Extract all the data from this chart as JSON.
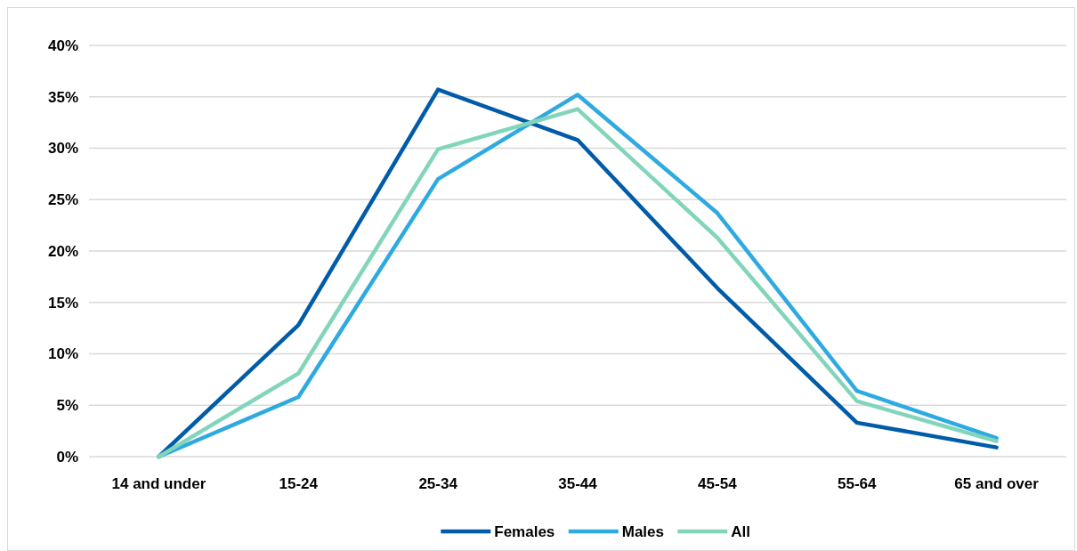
{
  "chart_data": {
    "type": "line",
    "categories": [
      "14 and under",
      "15-24",
      "25-34",
      "35-44",
      "45-54",
      "55-64",
      "65 and over"
    ],
    "series": [
      {
        "name": "Females",
        "color": "#005ba8",
        "values": [
          0,
          12.8,
          35.7,
          30.8,
          16.4,
          3.3,
          0.9
        ]
      },
      {
        "name": "Males",
        "color": "#2eaae1",
        "values": [
          0,
          5.8,
          27.0,
          35.2,
          23.7,
          6.4,
          1.8
        ]
      },
      {
        "name": "All",
        "color": "#82d5bb",
        "values": [
          0,
          8.1,
          29.9,
          33.8,
          21.3,
          5.4,
          1.5
        ]
      }
    ],
    "ylim": [
      0,
      40
    ],
    "yticks": [
      {
        "value": 0,
        "label": "0%"
      },
      {
        "value": 5,
        "label": "5%"
      },
      {
        "value": 10,
        "label": "10%"
      },
      {
        "value": 15,
        "label": "15%"
      },
      {
        "value": 20,
        "label": "20%"
      },
      {
        "value": 25,
        "label": "25%"
      },
      {
        "value": 30,
        "label": "30%"
      },
      {
        "value": 35,
        "label": "35%"
      },
      {
        "value": 40,
        "label": "40%"
      }
    ],
    "grid": "y",
    "legend": "bottom",
    "marker": "none",
    "line_style": "solid"
  }
}
